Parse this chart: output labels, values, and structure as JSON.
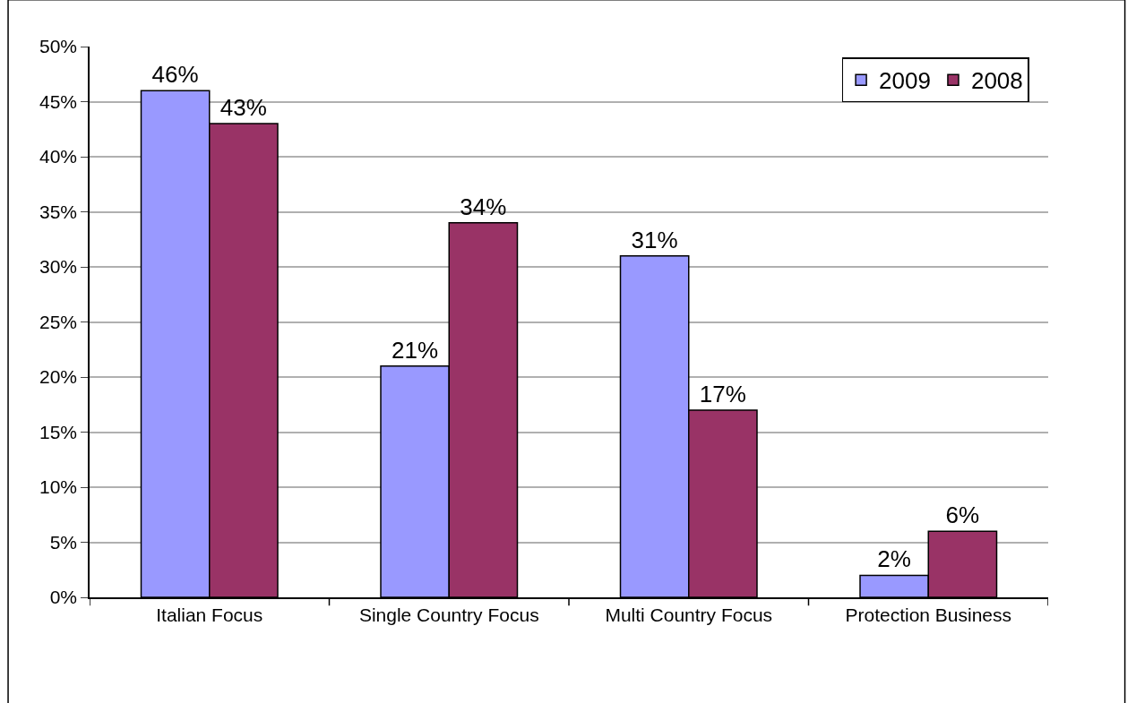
{
  "chart_data": {
    "type": "bar",
    "categories": [
      "Italian Focus",
      "Single Country Focus",
      "Multi Country Focus",
      "Protection Business"
    ],
    "series": [
      {
        "name": "2009",
        "color": "#9999ff",
        "values": [
          46,
          21,
          31,
          2
        ],
        "value_labels": [
          "46%",
          "21%",
          "31%",
          "2%"
        ]
      },
      {
        "name": "2008",
        "color": "#993366",
        "values": [
          43,
          34,
          17,
          6
        ],
        "value_labels": [
          "43%",
          "34%",
          "17%",
          "6%"
        ]
      }
    ],
    "ylim": [
      0,
      50
    ],
    "yticks": [
      {
        "value": 0,
        "label": "0%"
      },
      {
        "value": 5,
        "label": "5%"
      },
      {
        "value": 10,
        "label": "10%"
      },
      {
        "value": 15,
        "label": "15%"
      },
      {
        "value": 20,
        "label": "20%"
      },
      {
        "value": 25,
        "label": "25%"
      },
      {
        "value": 30,
        "label": "30%"
      },
      {
        "value": 35,
        "label": "35%"
      },
      {
        "value": 40,
        "label": "40%"
      },
      {
        "value": 45,
        "label": "45%"
      },
      {
        "value": 50,
        "label": "50%"
      }
    ],
    "grid": "y",
    "legend": "top right"
  }
}
